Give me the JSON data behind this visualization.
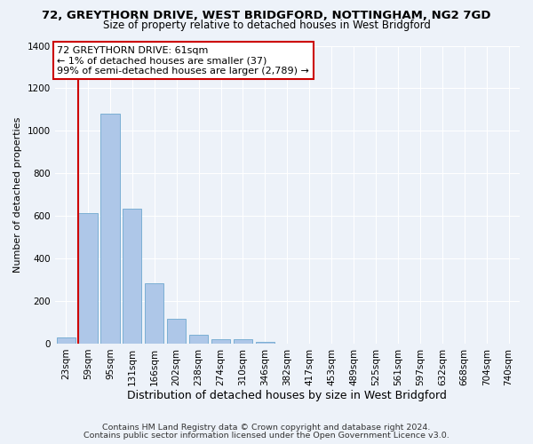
{
  "title": "72, GREYTHORN DRIVE, WEST BRIDGFORD, NOTTINGHAM, NG2 7GD",
  "subtitle": "Size of property relative to detached houses in West Bridgford",
  "xlabel": "Distribution of detached houses by size in West Bridgford",
  "ylabel": "Number of detached properties",
  "footnote1": "Contains HM Land Registry data © Crown copyright and database right 2024.",
  "footnote2": "Contains public sector information licensed under the Open Government Licence v3.0.",
  "annotation_line1": "72 GREYTHORN DRIVE: 61sqm",
  "annotation_line2": "← 1% of detached houses are smaller (37)",
  "annotation_line3": "99% of semi-detached houses are larger (2,789) →",
  "bar_labels": [
    "23sqm",
    "59sqm",
    "95sqm",
    "131sqm",
    "166sqm",
    "202sqm",
    "238sqm",
    "274sqm",
    "310sqm",
    "346sqm",
    "382sqm",
    "417sqm",
    "453sqm",
    "489sqm",
    "525sqm",
    "561sqm",
    "597sqm",
    "632sqm",
    "668sqm",
    "704sqm",
    "740sqm"
  ],
  "bar_values": [
    30,
    615,
    1080,
    635,
    285,
    115,
    40,
    20,
    20,
    8,
    0,
    0,
    0,
    0,
    0,
    0,
    0,
    0,
    0,
    0,
    0
  ],
  "bar_color": "#aec7e8",
  "bar_edge_color": "#7bafd4",
  "vline_color": "#cc0000",
  "annotation_border_color": "#cc0000",
  "annotation_bg": "#ffffff",
  "ylim_max": 1400,
  "yticks": [
    0,
    200,
    400,
    600,
    800,
    1000,
    1200,
    1400
  ],
  "background_color": "#edf2f9",
  "grid_color": "#ffffff",
  "title_fontsize": 9.5,
  "subtitle_fontsize": 8.5,
  "ylabel_fontsize": 8,
  "xlabel_fontsize": 9,
  "tick_fontsize": 7.5,
  "annotation_fontsize": 8,
  "footnote_fontsize": 6.8
}
